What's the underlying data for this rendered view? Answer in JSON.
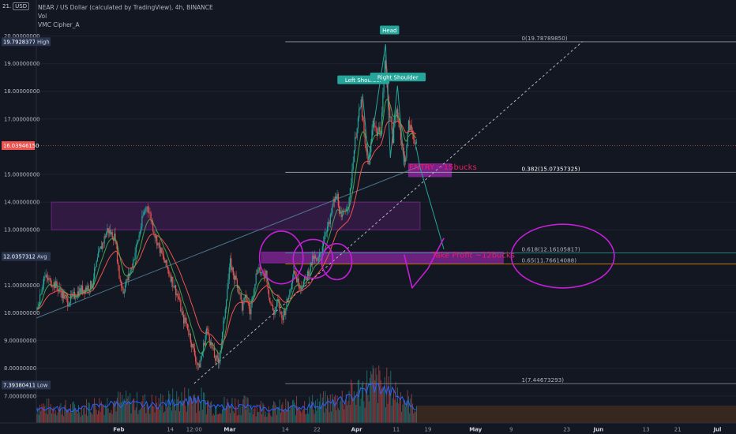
{
  "header": {
    "title": "NEAR / US Dollar (calculated by TradingView), 4h, BINANCE",
    "vol_label": "Vol",
    "indicator_label": "VMC Cipher_A",
    "axis_top_partial": "21.",
    "currency": "USD"
  },
  "colors": {
    "background": "#131722",
    "up": "#26a69a",
    "down": "#ef5350",
    "fib_line": "#d1d4dc",
    "purple": "#9c27b0",
    "annotation_text": "#e91e63",
    "label_box": "#26a69a",
    "price_badge": "#ef5350",
    "level_badge": "#2a3550",
    "vol_line": "#2962ff",
    "ema": "#ef5350",
    "ema_fast": "#26a69a"
  },
  "chart_data": {
    "type": "candlestick",
    "y_axis": {
      "min": 6.4,
      "max": 20.2,
      "tick_labels": [
        "20.00000000",
        "19.00000000",
        "18.00000000",
        "17.00000000",
        "15.00000000",
        "14.00000000",
        "13.00000000",
        "11.00000000",
        "10.00000000",
        "9.00000000",
        "8.00000000",
        "7.00000000"
      ],
      "tick_values": [
        20,
        19,
        18,
        17,
        15,
        14,
        13,
        11,
        10,
        9,
        8,
        7
      ]
    },
    "x_axis": {
      "tick_labels": [
        "Feb",
        "14",
        "12:00",
        "Mar",
        "14",
        "22",
        "Apr",
        "11",
        "19",
        "May",
        "9",
        "23",
        "Jun",
        "13",
        "21",
        "Jul"
      ],
      "tick_days": [
        31,
        44,
        50,
        59,
        73,
        81,
        91,
        101,
        109,
        121,
        130,
        144,
        152,
        164,
        172,
        182
      ]
    },
    "price_range": {
      "start_day": 10,
      "end_day": 106
    },
    "price_path": [
      [
        10,
        10.0
      ],
      [
        12,
        11.3
      ],
      [
        15,
        11.0
      ],
      [
        18,
        10.4
      ],
      [
        21,
        10.8
      ],
      [
        24,
        11.0
      ],
      [
        26,
        12.2
      ],
      [
        28,
        13.0
      ],
      [
        30,
        12.7
      ],
      [
        31,
        11.3
      ],
      [
        32,
        10.8
      ],
      [
        34,
        11.6
      ],
      [
        36,
        12.8
      ],
      [
        37,
        13.5
      ],
      [
        38,
        13.9
      ],
      [
        39,
        13.4
      ],
      [
        40,
        12.8
      ],
      [
        42,
        12.0
      ],
      [
        44,
        11.3
      ],
      [
        46,
        10.5
      ],
      [
        47,
        9.8
      ],
      [
        48,
        9.6
      ],
      [
        50,
        8.5
      ],
      [
        51,
        8.0
      ],
      [
        52,
        8.6
      ],
      [
        53,
        9.4
      ],
      [
        54,
        9.0
      ],
      [
        55,
        8.4
      ],
      [
        56,
        8.2
      ],
      [
        57,
        9.2
      ],
      [
        58,
        10.6
      ],
      [
        59,
        11.8
      ],
      [
        60,
        11.3
      ],
      [
        61,
        11.0
      ],
      [
        62,
        10.2
      ],
      [
        63,
        10.6
      ],
      [
        64,
        10.0
      ],
      [
        65,
        11.0
      ],
      [
        66,
        11.7
      ],
      [
        67,
        11.3
      ],
      [
        68,
        11.5
      ],
      [
        69,
        10.4
      ],
      [
        70,
        10.0
      ],
      [
        71,
        10.4
      ],
      [
        72,
        9.8
      ],
      [
        73,
        10.2
      ],
      [
        74,
        10.8
      ],
      [
        75,
        11.6
      ],
      [
        76,
        11.1
      ],
      [
        77,
        11.0
      ],
      [
        78,
        11.2
      ],
      [
        79,
        11.6
      ],
      [
        80,
        12.0
      ],
      [
        81,
        11.8
      ],
      [
        82,
        12.3
      ],
      [
        83,
        13.0
      ],
      [
        84,
        13.2
      ],
      [
        85,
        14.0
      ],
      [
        86,
        14.2
      ],
      [
        87,
        13.3
      ],
      [
        88,
        13.8
      ],
      [
        89,
        14.0
      ],
      [
        90,
        15.6
      ],
      [
        91,
        16.8
      ],
      [
        92,
        17.6
      ],
      [
        93,
        16.0
      ],
      [
        94,
        15.3
      ],
      [
        95,
        17.0
      ],
      [
        96,
        16.5
      ],
      [
        97,
        16.6
      ],
      [
        98,
        19.1
      ],
      [
        99,
        17.5
      ],
      [
        100,
        16.3
      ],
      [
        101,
        17.4
      ],
      [
        102,
        16.4
      ],
      [
        103,
        15.4
      ],
      [
        104,
        16.8
      ],
      [
        105,
        16.5
      ],
      [
        106,
        16.0
      ]
    ],
    "volume_path": [
      [
        10,
        0.35
      ],
      [
        20,
        0.3
      ],
      [
        30,
        0.45
      ],
      [
        40,
        0.4
      ],
      [
        50,
        0.55
      ],
      [
        55,
        0.35
      ],
      [
        60,
        0.4
      ],
      [
        70,
        0.3
      ],
      [
        80,
        0.4
      ],
      [
        85,
        0.45
      ],
      [
        90,
        0.6
      ],
      [
        95,
        0.85
      ],
      [
        100,
        0.7
      ],
      [
        103,
        0.5
      ],
      [
        106,
        0.35
      ]
    ],
    "fib_levels": [
      {
        "label": "0(19.78789850)",
        "value": 19.7879
      },
      {
        "label": "0.382(15.07357325)",
        "value": 15.0736
      },
      {
        "label": "0.618(12.16105817)",
        "value": 12.1611
      },
      {
        "label": "0.65(11.76614088)",
        "value": 11.7661
      },
      {
        "label": "1(7.44673293)",
        "value": 7.4467
      }
    ],
    "fib_start_day": 73,
    "fib_end_day": 132,
    "price_badges": [
      {
        "label": "19.79283775",
        "tag": "High",
        "value": 19.7928
      },
      {
        "label": "16.03946150",
        "tag": "",
        "value": 16.0395
      },
      {
        "label": "12.03573121",
        "tag": "Avg",
        "value": 12.0357
      },
      {
        "label": "7.39380411",
        "tag": "Low",
        "value": 7.3938
      }
    ],
    "pattern_labels": [
      {
        "text": "Head",
        "day": 99.3,
        "price": 20.2
      },
      {
        "text": "Left Shoulder",
        "day": 92.7,
        "price": 18.4
      },
      {
        "text": "Right Shoulder",
        "day": 101.4,
        "price": 18.5
      }
    ],
    "zones": [
      {
        "day_from": 14,
        "day_to": 107,
        "price_from": 13.0,
        "price_to": 14.0
      },
      {
        "day_from": 67,
        "day_to": 128,
        "price_from": 11.8,
        "price_to": 12.2
      }
    ],
    "entry_zone": {
      "day_from": 104,
      "day_to": 115,
      "price_from": 14.9,
      "price_to": 15.4
    },
    "annotations": [
      {
        "text": "ENTRY ~15bucks",
        "day": 104,
        "price": 15.25
      },
      {
        "text": "Take Profit ~12bucks",
        "day": 110,
        "price": 12.08
      }
    ],
    "trend_line": {
      "from": [
        10,
        9.8
      ],
      "to": [
        107,
        15.3
      ]
    },
    "dashed_line": {
      "from": [
        50,
        7.45
      ],
      "to": [
        148,
        19.8
      ]
    },
    "projection": {
      "from": [
        106,
        16.0
      ],
      "via": [
        107,
        15.25
      ],
      "to": [
        113,
        12.3
      ]
    },
    "circles": [
      {
        "day": 72,
        "price": 12.0,
        "rx_days": 5.5,
        "ry_price": 0.95
      },
      {
        "day": 80,
        "price": 11.95,
        "rx_days": 5,
        "ry_price": 0.7
      },
      {
        "day": 86,
        "price": 11.85,
        "rx_days": 3.8,
        "ry_price": 0.65
      },
      {
        "day": 143,
        "price": 12.05,
        "rx_days": 13,
        "ry_price": 1.15
      }
    ],
    "checkmark": [
      [
        103,
        12.1
      ],
      [
        105,
        10.9
      ],
      [
        109,
        11.6
      ],
      [
        113,
        12.7
      ]
    ]
  }
}
